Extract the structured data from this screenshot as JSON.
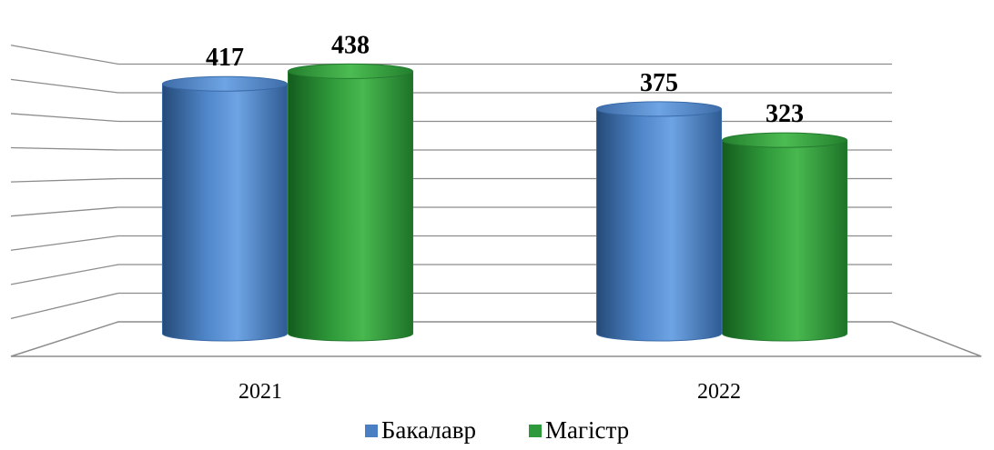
{
  "chart_data": {
    "type": "bar",
    "categories": [
      "2021",
      "2022"
    ],
    "series": [
      {
        "name": "Бакалавр",
        "values": [
          417,
          375
        ],
        "color": "#4a7fc4"
      },
      {
        "name": "Магістр",
        "values": [
          438,
          323
        ],
        "color": "#2e9a3c"
      }
    ],
    "title": "",
    "xlabel": "",
    "ylabel": "",
    "ylim": [
      0,
      450
    ],
    "grid": true,
    "legend": "bottom",
    "style": "3d-cylinder"
  }
}
